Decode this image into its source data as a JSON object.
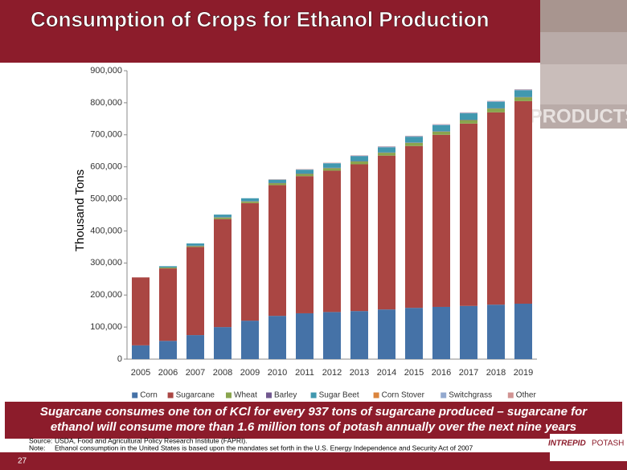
{
  "slide": {
    "title": "Consumption of Crops for Ethanol Production",
    "side_label": "PRODUCTS",
    "callout": [
      "Sugarcane consumes one ton of KCl for every 937 tons of sugarcane produced – sugarcane for",
      "ethanol will consume more than 1.6 million tons of potash annually over the next nine years"
    ],
    "source_label": "Source:",
    "source": "USDA, Food and Agricultural Policy Research Institute (FAPRI).",
    "note_label": "Note:",
    "note": "Ethanol consumption in the United States is based upon the mandates set forth in the U.S. Energy Independence and Security Act of 2007",
    "page_number": "27",
    "logo": [
      "INTREPID",
      "POTASH"
    ]
  },
  "chart_data": {
    "type": "stacked_bar",
    "y_label": "Thousand Tons",
    "categories": [
      "2005",
      "2006",
      "2007",
      "2008",
      "2009",
      "2010",
      "2011",
      "2012",
      "2013",
      "2014",
      "2015",
      "2016",
      "2017",
      "2018",
      "2019"
    ],
    "series": [
      {
        "name": "Corn",
        "color": "#4572a7",
        "values": [
          43000,
          57000,
          75000,
          100000,
          120000,
          135000,
          143000,
          147000,
          150000,
          155000,
          160000,
          163000,
          166000,
          170000,
          173000
        ]
      },
      {
        "name": "Sugarcane",
        "color": "#aa4643",
        "values": [
          212000,
          226000,
          275000,
          337000,
          367000,
          408000,
          428000,
          441000,
          458000,
          480000,
          505000,
          537000,
          569000,
          600000,
          632000
        ]
      },
      {
        "name": "Wheat",
        "color": "#89a54e",
        "values": [
          0,
          3000,
          3000,
          5000,
          5000,
          6000,
          7000,
          8000,
          9000,
          9000,
          10000,
          10000,
          11000,
          12000,
          12000
        ]
      },
      {
        "name": "Barley",
        "color": "#71588f",
        "values": [
          0,
          0,
          1000,
          1000,
          1000,
          1000,
          1000,
          1000,
          1000,
          1000,
          1000,
          1000,
          1000,
          1000,
          1000
        ]
      },
      {
        "name": "Sugar Beet",
        "color": "#4198af",
        "values": [
          0,
          4000,
          7000,
          8000,
          9000,
          10000,
          12000,
          14000,
          15000,
          16000,
          18000,
          19000,
          20000,
          20000,
          21000
        ]
      },
      {
        "name": "Corn Stover",
        "color": "#db843d",
        "values": [
          0,
          0,
          0,
          0,
          0,
          0,
          0,
          0,
          0,
          0,
          0,
          0,
          0,
          0,
          0
        ]
      },
      {
        "name": "Switchgrass",
        "color": "#93a9cf",
        "values": [
          0,
          0,
          0,
          0,
          0,
          0,
          1000,
          1000,
          2000,
          2000,
          2000,
          2000,
          2000,
          2000,
          2000
        ]
      },
      {
        "name": "Other",
        "color": "#d19392",
        "values": [
          0,
          0,
          0,
          0,
          0,
          1000,
          1000,
          1000,
          1000,
          1000,
          1000,
          1000,
          1000,
          1000,
          1000
        ]
      }
    ],
    "ylim": [
      0,
      900000
    ],
    "yticks": [
      0,
      {
        "value": 100000,
        "label": "100,000"
      },
      {
        "value": 200000,
        "label": "200,000"
      },
      {
        "value": 300000,
        "label": "300,000"
      },
      {
        "value": 400000,
        "label": "400,000"
      },
      {
        "value": 500000,
        "label": "500,000"
      },
      {
        "value": 600000,
        "label": "600,000"
      },
      {
        "value": 700000,
        "label": "700,000"
      },
      {
        "value": 800000,
        "label": "800,000"
      },
      {
        "value": 900000,
        "label": "900,000"
      }
    ],
    "legend": "bottom"
  }
}
